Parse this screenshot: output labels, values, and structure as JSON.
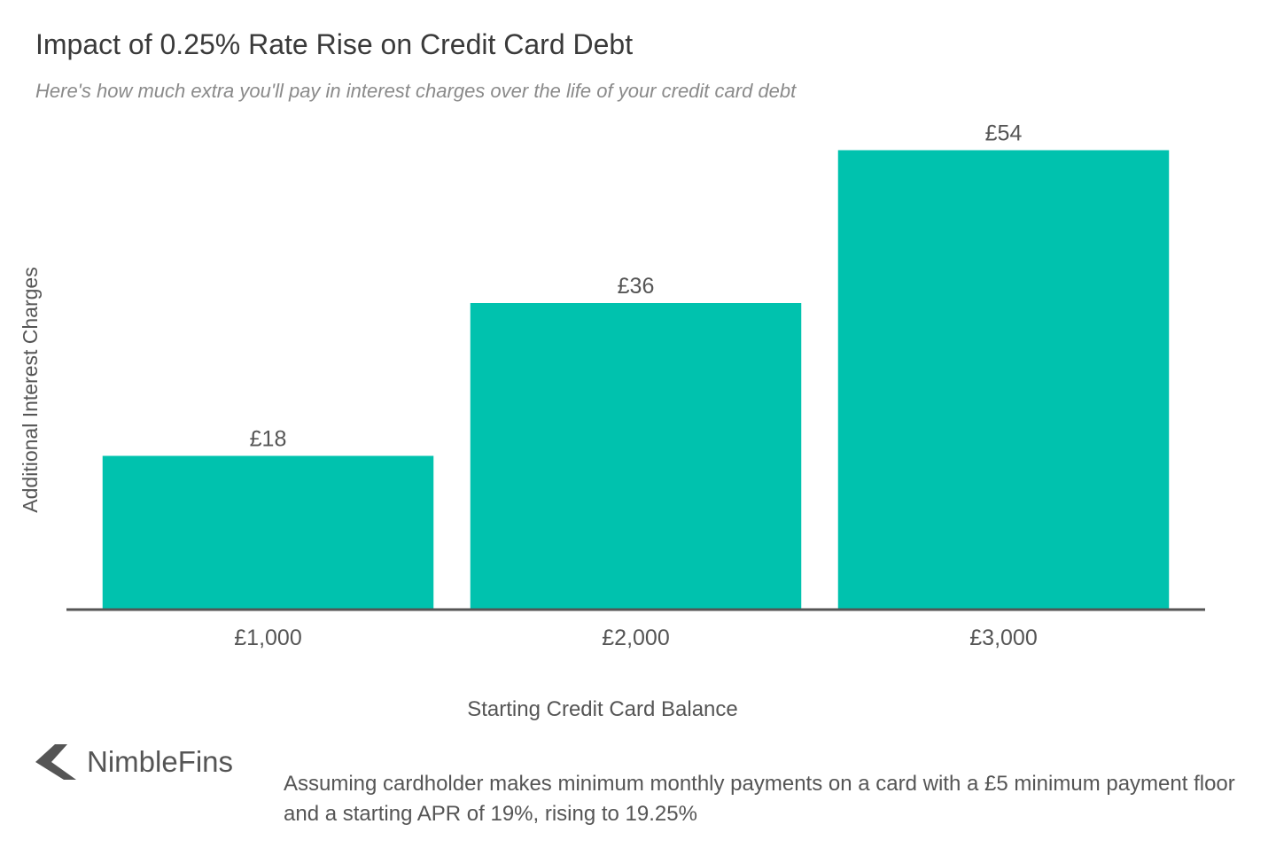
{
  "title": "Impact of 0.25% Rate Rise on Credit Card Debt",
  "subtitle": "Here's how much extra you'll pay in interest charges over the life of your credit card debt",
  "chart_data": {
    "type": "bar",
    "categories": [
      "£1,000",
      "£2,000",
      "£3,000"
    ],
    "values": [
      18,
      36,
      54
    ],
    "data_labels": [
      "£18",
      "£36",
      "£54"
    ],
    "xlabel": "Starting Credit Card Balance",
    "ylabel": "Additional Interest Charges",
    "ylim": [
      0,
      60
    ],
    "grid": false,
    "bar_color": "#00c2ae",
    "axis_color": "#555555"
  },
  "logo": {
    "text": "NimbleFins",
    "icon": "nimblefins-arrow-icon"
  },
  "footnote": "Assuming cardholder makes minimum monthly payments on a card with a £5 minimum payment floor and a starting APR of 19%, rising to 19.25%"
}
